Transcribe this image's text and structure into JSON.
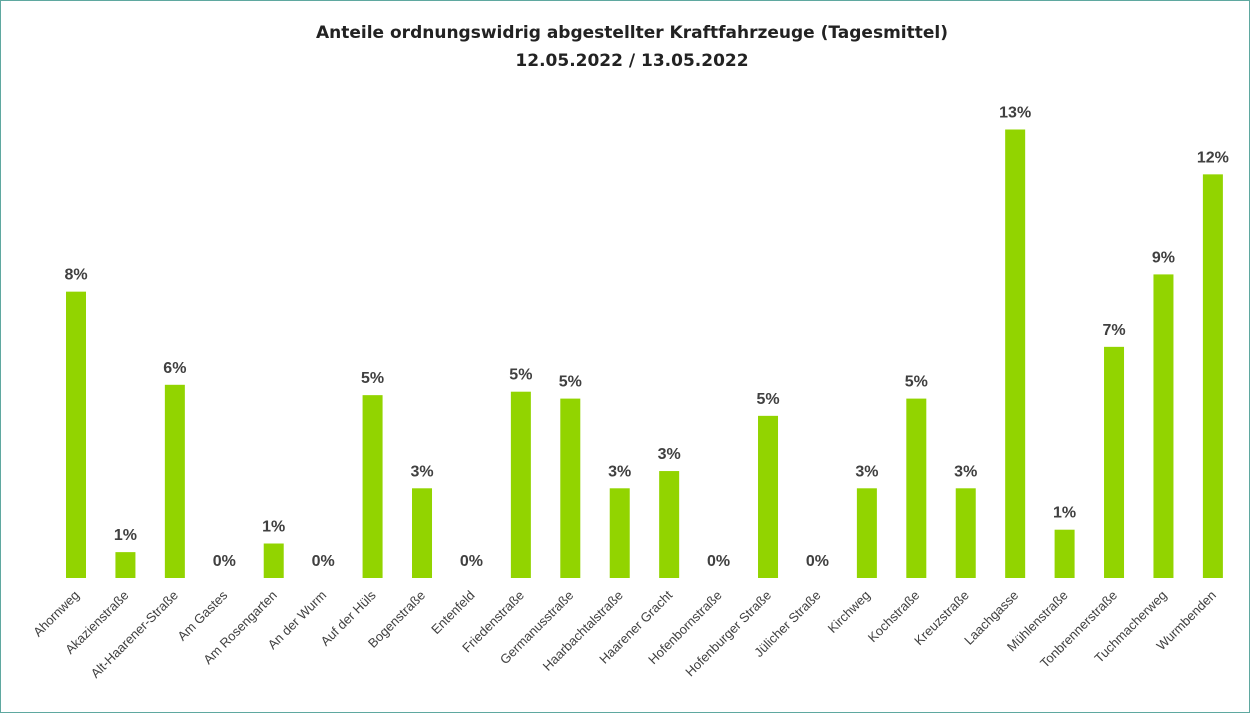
{
  "chart_data": {
    "type": "bar",
    "title": "Anteile ordnungswidrig abgestellter Kraftfahrzeuge (Tagesmittel)",
    "subtitle": "12.05.2022 / 13.05.2022",
    "color": "#92d400",
    "categories": [
      "Ahornweg",
      "Akazienstraße",
      "Alt-Haarener-Straße",
      "Am Gastes",
      "Am Rosengarten",
      "An der Wurm",
      "Auf der Hüls",
      "Bogenstraße",
      "Entenfeld",
      "Friedenstraße",
      "Germanusstraße",
      "Haarbachtalstraße",
      "Haarener Gracht",
      "Hofenbornstraße",
      "Hofenburger Straße",
      "Jülicher Straße",
      "Kirchweg",
      "Kochstraße",
      "Kreuzstraße",
      "Laachgasse",
      "Mühlenstraße",
      "Tonbrennerstraße",
      "Tuchmacherweg",
      "Wurmbenden"
    ],
    "values": [
      8.3,
      0.75,
      5.6,
      0,
      1.0,
      0,
      5.3,
      2.6,
      0,
      5.4,
      5.2,
      2.6,
      3.1,
      0,
      4.7,
      0,
      2.6,
      5.2,
      2.6,
      13.0,
      1.4,
      6.7,
      8.8,
      11.7
    ],
    "value_labels": [
      "8%",
      "1%",
      "6%",
      "0%",
      "1%",
      "0%",
      "5%",
      "3%",
      "0%",
      "5%",
      "5%",
      "3%",
      "3%",
      "0%",
      "5%",
      "0%",
      "3%",
      "5%",
      "3%",
      "13%",
      "1%",
      "7%",
      "9%",
      "12%"
    ]
  }
}
